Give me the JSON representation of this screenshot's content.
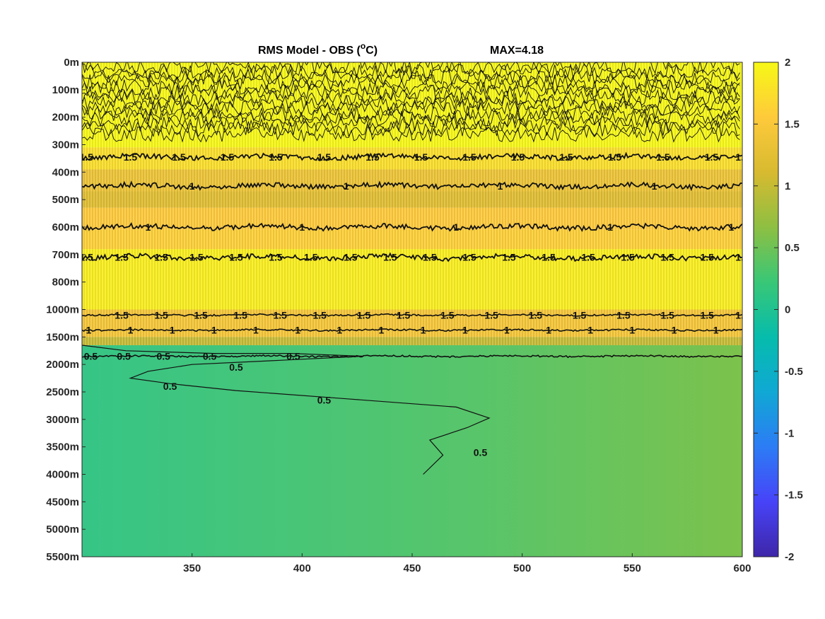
{
  "chart_data": {
    "type": "heatmap",
    "title_main": "RMS Model - OBS (",
    "title_super": "o",
    "title_unit": "C)",
    "title_max": "MAX=4.18",
    "x_ticks": [
      350,
      400,
      450,
      500,
      550,
      600
    ],
    "xlim": [
      300,
      600
    ],
    "y_tick_labels": [
      "0m",
      "100m",
      "200m",
      "300m",
      "400m",
      "500m",
      "600m",
      "700m",
      "800m",
      "1000m",
      "1500m",
      "2000m",
      "2500m",
      "3000m",
      "3500m",
      "4000m",
      "4500m",
      "5000m",
      "5500m"
    ],
    "colorbar": {
      "range": [
        -2,
        2
      ],
      "ticks": [
        "2",
        "1.5",
        "1",
        "0.5",
        "0",
        "-0.5",
        "-1",
        "-1.5",
        "-2"
      ],
      "colors": [
        "#3e26a8",
        "#4743f8",
        "#2c7cf5",
        "#10a8d4",
        "#06bcac",
        "#39c776",
        "#8ebf42",
        "#d8ba30",
        "#feca3b",
        "#f7f816"
      ]
    },
    "bands": [
      {
        "from_level": 0,
        "to_level": 3.1,
        "value": 2.0
      },
      {
        "from_level": 3.1,
        "to_level": 3.9,
        "value": 1.75
      },
      {
        "from_level": 3.9,
        "to_level": 4.7,
        "value": 1.35
      },
      {
        "from_level": 4.7,
        "to_level": 5.3,
        "value": 1.2
      },
      {
        "from_level": 5.3,
        "to_level": 6.1,
        "value": 1.55
      },
      {
        "from_level": 6.1,
        "to_level": 6.8,
        "value": 1.6
      },
      {
        "from_level": 6.8,
        "to_level": 9.0,
        "value": 1.9
      },
      {
        "from_level": 9.0,
        "to_level": 10.0,
        "value": 1.45
      },
      {
        "from_level": 10.0,
        "to_level": 10.3,
        "value": 1.0
      },
      {
        "from_level": 10.3,
        "to_level": 18,
        "value": 0.55
      }
    ],
    "contours": [
      {
        "level": "1.5",
        "y_level": 3.45,
        "labels_x": [
          302,
          322,
          344,
          366,
          388,
          410,
          432,
          454,
          476,
          498,
          520,
          542,
          564,
          586,
          600
        ]
      },
      {
        "level": "1",
        "y_level": 4.5,
        "labels_x": [
          350,
          420,
          490,
          560
        ]
      },
      {
        "level": "1",
        "y_level": 6.0,
        "labels_x": [
          330,
          400,
          470,
          540,
          595
        ]
      },
      {
        "level": "1.5",
        "y_level": 7.1,
        "labels_x": [
          302,
          318,
          336,
          352,
          370,
          388,
          404,
          422,
          440,
          458,
          476,
          494,
          512,
          530,
          548,
          566,
          584,
          600
        ]
      },
      {
        "level": "1.5",
        "y_level": 9.2,
        "labels_x": [
          318,
          336,
          354,
          372,
          390,
          408,
          428,
          446,
          466,
          486,
          506,
          526,
          546,
          566,
          584,
          600
        ]
      },
      {
        "level": "1",
        "y_level": 9.75,
        "labels_x": [
          303,
          322,
          341,
          360,
          379,
          398,
          417,
          436,
          455,
          474,
          493,
          512,
          531,
          550,
          569,
          588
        ]
      },
      {
        "level": "0.5",
        "y_level": 10.7,
        "labels_x": [
          304,
          319,
          337,
          358,
          396
        ]
      }
    ],
    "contour_05_path": [
      [
        300,
        10.3
      ],
      [
        320,
        10.5
      ],
      [
        360,
        10.6
      ],
      [
        395,
        10.6
      ],
      [
        428,
        10.7
      ],
      [
        390,
        10.85
      ],
      [
        350,
        11.0
      ],
      [
        330,
        11.25
      ],
      [
        322,
        11.5
      ],
      [
        340,
        11.7
      ],
      [
        370,
        11.95
      ],
      [
        420,
        12.25
      ],
      [
        470,
        12.55
      ],
      [
        485,
        12.95
      ],
      [
        475,
        13.3
      ],
      [
        458,
        13.75
      ],
      [
        464,
        14.3
      ],
      [
        455,
        15
      ]
    ],
    "contour_05_labels": [
      {
        "text": "0.5",
        "x": 370,
        "y": 11.1
      },
      {
        "text": "0.5",
        "x": 340,
        "y": 11.8
      },
      {
        "text": "0.5",
        "x": 410,
        "y": 12.3
      },
      {
        "text": "0.5",
        "x": 481,
        "y": 14.2
      }
    ]
  }
}
